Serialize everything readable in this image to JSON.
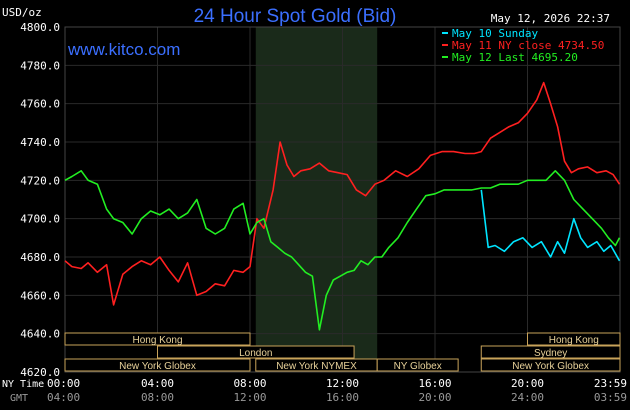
{
  "header": {
    "currency": "USD/oz",
    "title": "24 Hour Spot Gold (Bid)",
    "timestamp": "May 12, 2026 22:37",
    "watermark": "www.kitco.com"
  },
  "legend": [
    {
      "label": "May 10 Sunday",
      "color": "#00e5ff"
    },
    {
      "label": "May 11 NY close 4734.50",
      "color": "#ff2020"
    },
    {
      "label": "May 12 Last 4695.20",
      "color": "#22ee22"
    }
  ],
  "colors": {
    "background": "#000000",
    "plot": "#000000",
    "grid": "#2a2a2a",
    "highlight": "#1a2a1a",
    "axis_text": "#ffffff",
    "title": "#3b6fff",
    "session_fill": "#000000",
    "session_border": "#c9a35a",
    "session_text": "#e8d29a"
  },
  "markets": [
    {
      "label": "Hong Kong",
      "start_hours": 0,
      "end_hours": 8.0
    },
    {
      "label": "London",
      "start_hours": 4.0,
      "end_hours": 12.5
    },
    {
      "label": "New York Globex",
      "start_hours": 0,
      "end_hours": 8.0
    },
    {
      "label": "New York NYMEX",
      "start_hours": 8.25,
      "end_hours": 13.5
    },
    {
      "label": "NY Globex",
      "start_hours": 13.5,
      "end_hours": 17.0
    },
    {
      "label": "Hong Kong",
      "start_hours": 20.0,
      "end_hours": 24.0
    },
    {
      "label": "Sydney",
      "start_hours": 18.0,
      "end_hours": 24.0
    },
    {
      "label": "New York Globex",
      "start_hours": 18.0,
      "end_hours": 24.0
    }
  ],
  "axis_labels": {
    "ny_time": "NY Time",
    "gmt": "GMT"
  },
  "chart_data": {
    "type": "line",
    "ylim": [
      4620,
      4800
    ],
    "yticks": [
      "4800.0",
      "4780.0",
      "4760.0",
      "4740.0",
      "4720.0",
      "4700.0",
      "4680.0",
      "4660.0",
      "4640.0",
      "4620.0"
    ],
    "xlim": [
      0,
      24
    ],
    "xticks_ny": [
      "00:00",
      "04:00",
      "08:00",
      "12:00",
      "16:00",
      "20:00",
      "23:59"
    ],
    "xticks_gmt": [
      "04:00",
      "08:00",
      "12:00",
      "16:00",
      "20:00",
      "24:00",
      "03:59"
    ],
    "nymex_highlight_hours": [
      8.25,
      13.5
    ],
    "series": [
      {
        "name": "May 10 Sunday",
        "color": "#00e5ff",
        "x": [
          18.0,
          18.3,
          18.6,
          19.0,
          19.4,
          19.8,
          20.2,
          20.6,
          21.0,
          21.3,
          21.6,
          22.0,
          22.3,
          22.6,
          23.0,
          23.3,
          23.6,
          23.98
        ],
        "y": [
          4715,
          4685,
          4686,
          4683,
          4688,
          4690,
          4685,
          4688,
          4680,
          4688,
          4682,
          4700,
          4690,
          4685,
          4688,
          4683,
          4686,
          4678
        ]
      },
      {
        "name": "May 11 NY close 4734.50",
        "color": "#ff2020",
        "x": [
          0,
          0.3,
          0.7,
          1.0,
          1.4,
          1.8,
          2.1,
          2.5,
          2.9,
          3.3,
          3.7,
          4.1,
          4.5,
          4.9,
          5.3,
          5.7,
          6.1,
          6.5,
          6.9,
          7.3,
          7.7,
          8.0,
          8.3,
          8.6,
          9.0,
          9.3,
          9.6,
          9.9,
          10.2,
          10.6,
          11.0,
          11.4,
          11.8,
          12.2,
          12.6,
          13.0,
          13.4,
          13.8,
          14.3,
          14.8,
          15.3,
          15.8,
          16.3,
          16.8,
          17.3,
          17.7,
          18.0,
          18.4,
          18.8,
          19.2,
          19.6,
          20.0,
          20.4,
          20.7,
          21.0,
          21.3,
          21.6,
          21.9,
          22.2,
          22.6,
          23.0,
          23.4,
          23.7,
          23.98
        ],
        "y": [
          4678,
          4675,
          4674,
          4677,
          4672,
          4676,
          4655,
          4671,
          4675,
          4678,
          4676,
          4680,
          4673,
          4667,
          4677,
          4660,
          4662,
          4666,
          4665,
          4673,
          4672,
          4675,
          4700,
          4695,
          4715,
          4740,
          4728,
          4722,
          4725,
          4726,
          4729,
          4725,
          4724,
          4723,
          4715,
          4712,
          4718,
          4720,
          4725,
          4722,
          4726,
          4733,
          4735,
          4735,
          4734,
          4734,
          4735,
          4742,
          4745,
          4748,
          4750,
          4755,
          4762,
          4771,
          4760,
          4748,
          4730,
          4724,
          4726,
          4727,
          4724,
          4725,
          4723,
          4718
        ]
      },
      {
        "name": "May 12 Last 4695.20",
        "color": "#22ee22",
        "x": [
          0,
          0.3,
          0.7,
          1.0,
          1.4,
          1.8,
          2.1,
          2.5,
          2.9,
          3.3,
          3.7,
          4.1,
          4.5,
          4.9,
          5.3,
          5.7,
          6.1,
          6.5,
          6.9,
          7.3,
          7.7,
          8.0,
          8.3,
          8.6,
          8.9,
          9.2,
          9.5,
          9.8,
          10.1,
          10.4,
          10.7,
          11.0,
          11.3,
          11.6,
          11.9,
          12.2,
          12.5,
          12.8,
          13.1,
          13.4,
          13.7,
          14.0,
          14.4,
          14.8,
          15.2,
          15.6,
          16.0,
          16.4,
          16.8,
          17.2,
          17.6,
          18.0,
          18.4,
          18.8,
          19.2,
          19.6,
          20.0,
          20.4,
          20.8,
          21.2,
          21.6,
          22.0,
          22.4,
          22.8,
          23.2,
          23.5,
          23.8,
          23.98
        ],
        "y": [
          4720,
          4722,
          4725,
          4720,
          4718,
          4705,
          4700,
          4698,
          4692,
          4700,
          4704,
          4702,
          4705,
          4700,
          4703,
          4710,
          4695,
          4692,
          4695,
          4705,
          4708,
          4692,
          4698,
          4700,
          4688,
          4685,
          4682,
          4680,
          4676,
          4672,
          4670,
          4642,
          4660,
          4668,
          4670,
          4672,
          4673,
          4678,
          4676,
          4680,
          4680,
          4685,
          4690,
          4698,
          4705,
          4712,
          4713,
          4715,
          4715,
          4715,
          4715,
          4716,
          4716,
          4718,
          4718,
          4718,
          4720,
          4720,
          4720,
          4725,
          4720,
          4710,
          4705,
          4700,
          4695,
          4690,
          4686,
          4690
        ]
      }
    ]
  }
}
